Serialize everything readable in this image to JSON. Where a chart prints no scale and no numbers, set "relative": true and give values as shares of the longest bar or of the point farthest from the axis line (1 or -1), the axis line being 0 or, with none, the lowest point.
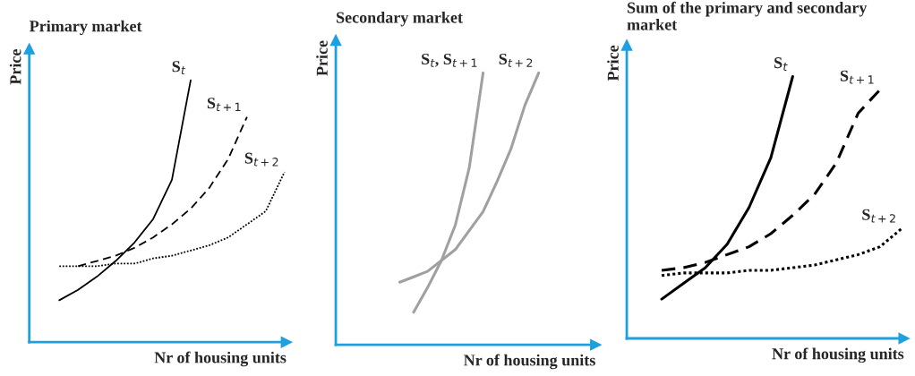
{
  "chart_data": [
    {
      "type": "line",
      "title": "Primary market",
      "xlabel": "Nr of housing units",
      "ylabel": "Price",
      "relative": true,
      "legend": false,
      "grid": false,
      "categories": [
        null,
        null,
        null,
        null,
        null,
        null,
        null,
        null,
        null,
        null,
        null,
        null,
        null,
        null
      ],
      "series": [
        {
          "name": "S$_{t}$",
          "color": "#000000",
          "line_style": "solid",
          "values": [
            null,
            0.16,
            0.2,
            0.25,
            0.31,
            0.38,
            0.47,
            0.62,
            1.0,
            null,
            null,
            null,
            null,
            null
          ]
        },
        {
          "name": "S$_{t+1}$",
          "color": "#000000",
          "line_style": "dashed",
          "values": [
            null,
            null,
            0.29,
            0.31,
            0.33,
            0.36,
            0.4,
            0.45,
            0.51,
            0.59,
            0.7,
            0.86,
            null,
            null
          ]
        },
        {
          "name": "S$_{t+2}$",
          "color": "#000000",
          "line_style": "dotted",
          "values": [
            null,
            0.29,
            0.29,
            0.29,
            0.3,
            0.3,
            0.32,
            0.33,
            0.35,
            0.37,
            0.4,
            0.45,
            0.5,
            0.65
          ]
        }
      ]
    },
    {
      "type": "line",
      "title": "Secondary market",
      "xlabel": "Nr of housing units",
      "ylabel": "Price",
      "relative": true,
      "legend": false,
      "grid": false,
      "categories": [
        null,
        null,
        null,
        null,
        null,
        null,
        null,
        null,
        null,
        null,
        null,
        null,
        null,
        null,
        null,
        null,
        null,
        null,
        null
      ],
      "series": [
        {
          "name": "S$_{t}$, S$_{t+1}$",
          "color": "#a0a0a0",
          "line_style": "solid",
          "values": [
            null,
            null,
            null,
            null,
            null,
            0.12,
            0.21,
            0.31,
            0.44,
            0.65,
            1.0,
            null,
            null,
            null,
            null,
            null,
            null,
            null,
            null
          ]
        },
        {
          "name": "S$_{t+2}$",
          "color": "#a0a0a0",
          "line_style": "solid",
          "values": [
            null,
            null,
            null,
            null,
            0.23,
            0.25,
            0.27,
            0.31,
            0.35,
            0.42,
            0.49,
            0.6,
            0.72,
            0.88,
            1.0,
            null,
            null,
            null,
            null
          ]
        }
      ]
    },
    {
      "type": "line",
      "title": "Sum of the primary and secondary market",
      "xlabel": "Nr of housing units",
      "ylabel": "Price",
      "relative": true,
      "legend": false,
      "grid": false,
      "categories": [
        null,
        null,
        null,
        null,
        null,
        null,
        null,
        null,
        null,
        null,
        null,
        null,
        null
      ],
      "series": [
        {
          "name": "S$_{t}$",
          "color": "#000000",
          "line_style": "solid",
          "values": [
            null,
            0.15,
            0.21,
            0.27,
            0.36,
            0.5,
            0.69,
            1.0,
            null,
            null,
            null,
            null,
            null
          ]
        },
        {
          "name": "S$_{t+1}$",
          "color": "#000000",
          "line_style": "dashed",
          "values": [
            null,
            0.26,
            0.27,
            0.29,
            0.32,
            0.35,
            0.4,
            0.47,
            0.55,
            0.67,
            0.86,
            0.95,
            null
          ]
        },
        {
          "name": "S$_{t+2}$",
          "color": "#000000",
          "line_style": "dotted",
          "values": [
            null,
            0.24,
            0.25,
            0.25,
            0.25,
            0.26,
            0.26,
            0.27,
            0.28,
            0.3,
            0.32,
            0.35,
            0.42
          ]
        }
      ]
    }
  ]
}
